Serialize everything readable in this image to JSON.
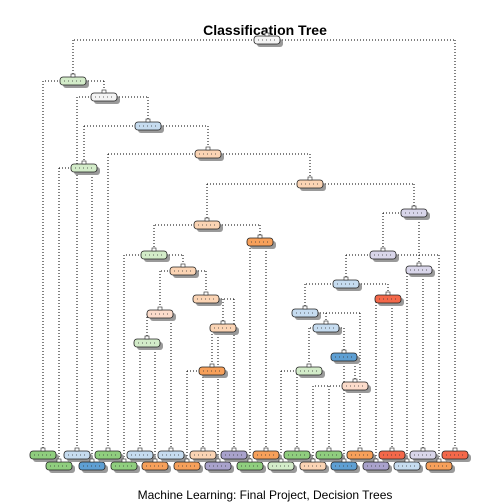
{
  "title": "Classification Tree",
  "caption": "Machine Learning: Final Project, Decision Trees",
  "palette": {
    "green": "#8fce7e",
    "lightgreen": "#d3ecc9",
    "blue": "#5e9fd3",
    "lightblue": "#c6dcf0",
    "orange": "#f7a05a",
    "lightorange": "#fbd4b4",
    "purple": "#a9a2cc",
    "lightpurple": "#d9d6ea",
    "red": "#f4684a",
    "peach": "#fcdccb",
    "white": "#f4f4f4",
    "line": "#000000",
    "shadow": "#9a9a9a"
  },
  "tree": {
    "nodes": [
      {
        "id": 0,
        "parent": null,
        "fill": "white",
        "kind": "split"
      },
      {
        "id": 1,
        "parent": 0,
        "fill": "lightgreen",
        "kind": "split"
      },
      {
        "id": 2,
        "parent": 1,
        "fill": "white",
        "kind": "split"
      },
      {
        "id": 3,
        "parent": 2,
        "fill": "lightblue",
        "kind": "split"
      },
      {
        "id": 4,
        "parent": 3,
        "fill": "lightgreen",
        "kind": "split"
      },
      {
        "id": 5,
        "parent": 3,
        "fill": "lightorange",
        "kind": "split"
      },
      {
        "id": 6,
        "parent": 5,
        "fill": "lightorange",
        "kind": "split"
      },
      {
        "id": 7,
        "parent": 6,
        "fill": "lightorange",
        "kind": "split"
      },
      {
        "id": 8,
        "parent": 6,
        "fill": "lightpurple",
        "kind": "split"
      },
      {
        "id": 9,
        "parent": 7,
        "fill": "lightgreen",
        "kind": "split"
      },
      {
        "id": 10,
        "parent": 7,
        "fill": "orange",
        "kind": "split"
      },
      {
        "id": 11,
        "parent": 9,
        "fill": "lightorange",
        "kind": "split"
      },
      {
        "id": 12,
        "parent": 11,
        "fill": "peach",
        "kind": "split"
      },
      {
        "id": 13,
        "parent": 11,
        "fill": "lightorange",
        "kind": "split"
      },
      {
        "id": 14,
        "parent": 12,
        "fill": "lightgreen",
        "kind": "split"
      },
      {
        "id": 15,
        "parent": 13,
        "fill": "lightorange",
        "kind": "split"
      },
      {
        "id": 16,
        "parent": 15,
        "fill": "orange",
        "kind": "split"
      },
      {
        "id": 17,
        "parent": 8,
        "fill": "lightpurple",
        "kind": "split"
      },
      {
        "id": 18,
        "parent": 8,
        "fill": "lightpurple",
        "kind": "split"
      },
      {
        "id": 19,
        "parent": 17,
        "fill": "lightblue",
        "kind": "split"
      },
      {
        "id": 20,
        "parent": 19,
        "fill": "lightblue",
        "kind": "split"
      },
      {
        "id": 21,
        "parent": 19,
        "fill": "red",
        "kind": "split"
      },
      {
        "id": 22,
        "parent": 20,
        "fill": "lightblue",
        "kind": "split"
      },
      {
        "id": 23,
        "parent": 22,
        "fill": "lightgreen",
        "kind": "split"
      },
      {
        "id": 24,
        "parent": 22,
        "fill": "blue",
        "kind": "split"
      },
      {
        "id": 25,
        "parent": 24,
        "fill": "peach",
        "kind": "split"
      },
      {
        "id": 26,
        "parent": 1,
        "fill": "green",
        "kind": "leaf"
      },
      {
        "id": 27,
        "parent": 4,
        "fill": "green",
        "kind": "leaf"
      },
      {
        "id": 28,
        "parent": 2,
        "fill": "lightblue",
        "kind": "leaf"
      },
      {
        "id": 29,
        "parent": 4,
        "fill": "blue",
        "kind": "leaf"
      },
      {
        "id": 30,
        "parent": 5,
        "fill": "green",
        "kind": "leaf"
      },
      {
        "id": 31,
        "parent": 9,
        "fill": "green",
        "kind": "leaf"
      },
      {
        "id": 32,
        "parent": 14,
        "fill": "lightblue",
        "kind": "leaf"
      },
      {
        "id": 33,
        "parent": 14,
        "fill": "orange",
        "kind": "leaf"
      },
      {
        "id": 34,
        "parent": 12,
        "fill": "lightblue",
        "kind": "leaf"
      },
      {
        "id": 35,
        "parent": 16,
        "fill": "orange",
        "kind": "leaf"
      },
      {
        "id": 36,
        "parent": 16,
        "fill": "lightorange",
        "kind": "leaf"
      },
      {
        "id": 37,
        "parent": 15,
        "fill": "purple",
        "kind": "leaf"
      },
      {
        "id": 38,
        "parent": 13,
        "fill": "purple",
        "kind": "leaf"
      },
      {
        "id": 39,
        "parent": 10,
        "fill": "green",
        "kind": "leaf"
      },
      {
        "id": 40,
        "parent": 10,
        "fill": "orange",
        "kind": "leaf"
      },
      {
        "id": 41,
        "parent": 23,
        "fill": "lightgreen",
        "kind": "leaf"
      },
      {
        "id": 42,
        "parent": 23,
        "fill": "green",
        "kind": "leaf"
      },
      {
        "id": 43,
        "parent": 25,
        "fill": "lightorange",
        "kind": "leaf"
      },
      {
        "id": 44,
        "parent": 25,
        "fill": "green",
        "kind": "leaf"
      },
      {
        "id": 45,
        "parent": 24,
        "fill": "blue",
        "kind": "leaf"
      },
      {
        "id": 46,
        "parent": 20,
        "fill": "orange",
        "kind": "leaf"
      },
      {
        "id": 47,
        "parent": 21,
        "fill": "purple",
        "kind": "leaf"
      },
      {
        "id": 48,
        "parent": 21,
        "fill": "red",
        "kind": "leaf"
      },
      {
        "id": 49,
        "parent": 18,
        "fill": "lightblue",
        "kind": "leaf"
      },
      {
        "id": 50,
        "parent": 18,
        "fill": "lightpurple",
        "kind": "leaf"
      },
      {
        "id": 51,
        "parent": 17,
        "fill": "orange",
        "kind": "leaf"
      },
      {
        "id": 52,
        "parent": 0,
        "fill": "red",
        "kind": "leaf"
      }
    ]
  }
}
